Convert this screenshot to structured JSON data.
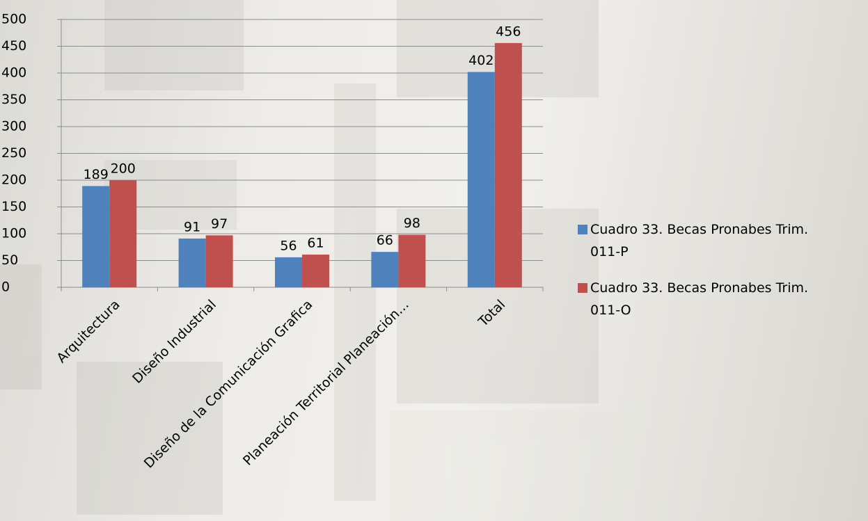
{
  "chart_data": {
    "type": "bar",
    "categories": [
      "Arquitectura",
      "Diseño Industrial",
      "Diseño de la Comunicación Grafica",
      "Planeación Territorial Planeación…",
      "Total"
    ],
    "series": [
      {
        "name": "Cuadro 33. Becas Pronabes Trim. 011-P",
        "color": "#4f81bd",
        "values": [
          189,
          91,
          56,
          66,
          402
        ]
      },
      {
        "name": "Cuadro 33. Becas Pronabes Trim. 011-O",
        "color": "#c0504d",
        "values": [
          200,
          97,
          61,
          98,
          456
        ]
      }
    ],
    "ylim": [
      0,
      500
    ],
    "yticks": [
      0,
      50,
      100,
      150,
      200,
      250,
      300,
      350,
      400,
      450,
      500
    ],
    "grid": true,
    "legend": "right"
  }
}
